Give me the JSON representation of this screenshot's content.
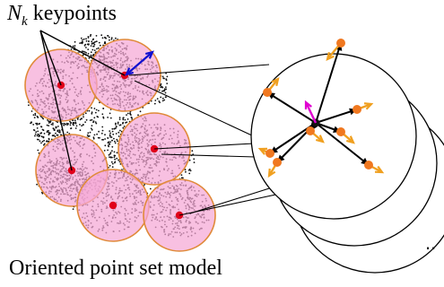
{
  "label": {
    "n": "N",
    "k": "k",
    "keypoints": " keypoints"
  },
  "caption": "Oriented point set model",
  "ellipsis": "..",
  "colors": {
    "circle_fill": "#f5a8d6",
    "circle_stroke": "#e08a3a",
    "keypoint": "#e0001a",
    "scatter": "#111111",
    "orientation_blue": "#1010d0",
    "orientation_magenta": "#e000d0",
    "point_orange": "#f07820",
    "arrow_orange": "#f0a020"
  }
}
